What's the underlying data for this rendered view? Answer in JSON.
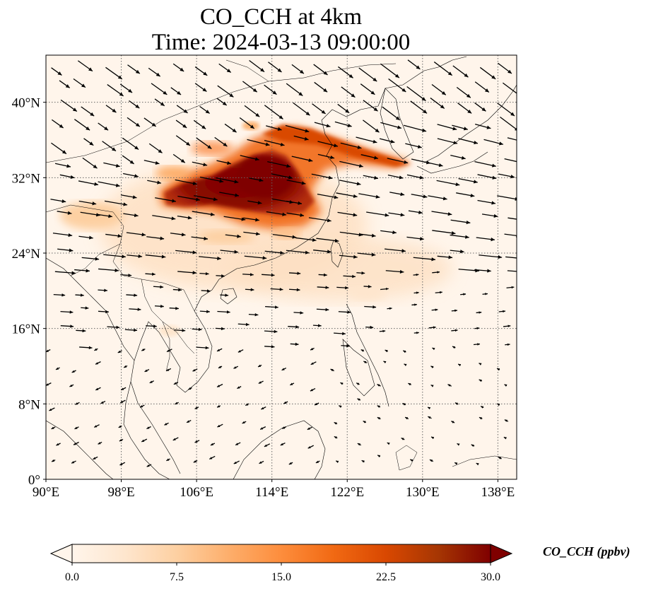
{
  "title": {
    "line1": "CO_CCH at 4km",
    "line2": "Time: 2024-03-13 09:00:00"
  },
  "map": {
    "lon_range": [
      90,
      140
    ],
    "lat_range": [
      0,
      45
    ],
    "lon_ticks": [
      "90°E",
      "98°E",
      "106°E",
      "114°E",
      "122°E",
      "130°E",
      "138°E"
    ],
    "lon_tick_values": [
      90,
      98,
      106,
      114,
      122,
      130,
      138
    ],
    "lat_ticks": [
      "0°",
      "8°N",
      "16°N",
      "24°N",
      "32°N",
      "40°N"
    ],
    "lat_tick_values": [
      0,
      8,
      16,
      24,
      32,
      40
    ],
    "gridlines": true,
    "field": "CO_CCH concentration at 4 km with wind vectors"
  },
  "colorbar": {
    "label": "CO_CCH (ppbv)",
    "ticks": [
      "0.0",
      "7.5",
      "15.0",
      "22.5",
      "30.0"
    ],
    "tick_values": [
      0,
      7.5,
      15,
      22.5,
      30
    ],
    "range": [
      0,
      30
    ],
    "extend": "both",
    "colors": [
      "#fff5eb",
      "#fee6ce",
      "#fdd0a2",
      "#fdae6b",
      "#fd8d3c",
      "#f16913",
      "#d94801",
      "#a63603",
      "#7f0000"
    ]
  }
}
